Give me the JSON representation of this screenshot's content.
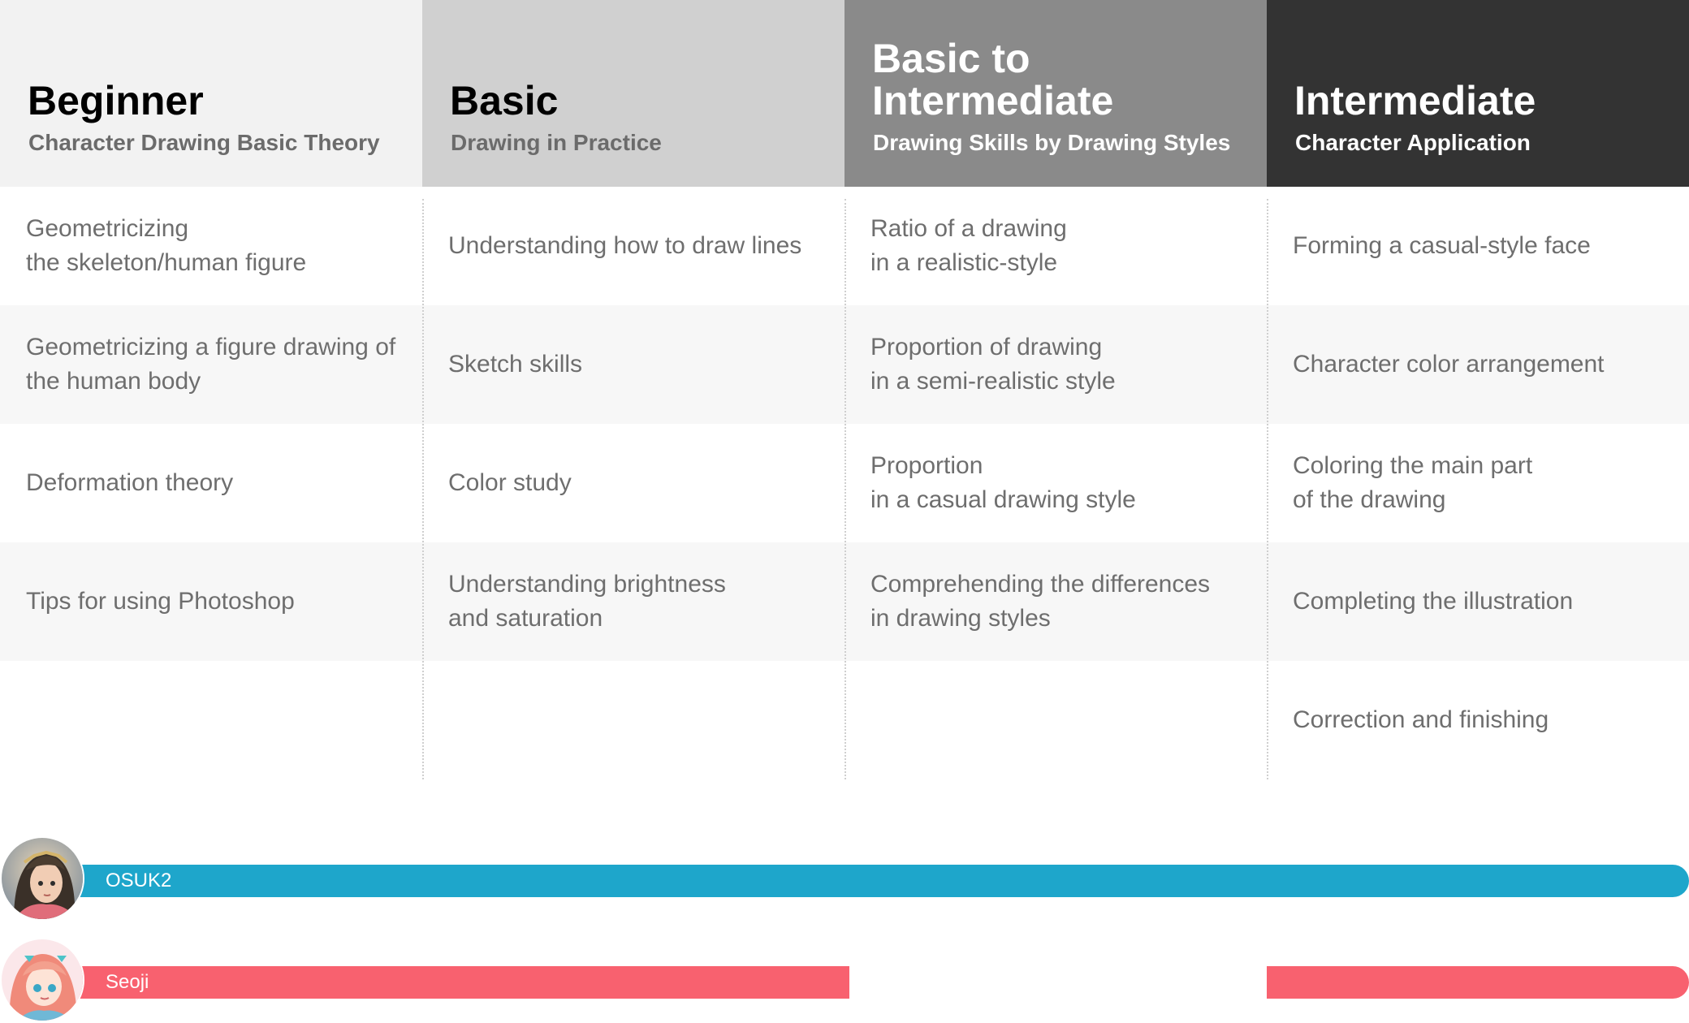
{
  "levels": [
    {
      "title": "Beginner",
      "subtitle": "Character Drawing Basic Theory",
      "items": [
        "Geometricizing\nthe skeleton/human figure",
        "Geometricizing a figure drawing of\nthe human body",
        "Deformation theory",
        "Tips for using Photoshop"
      ]
    },
    {
      "title": "Basic",
      "subtitle": "Drawing in Practice",
      "items": [
        "Understanding how to draw lines",
        "Sketch skills",
        "Color study",
        "Understanding brightness\nand saturation"
      ]
    },
    {
      "title": "Basic to\nIntermediate",
      "subtitle": "Drawing Skills by Drawing Styles",
      "items": [
        "Ratio of a drawing\nin a realistic-style",
        "Proportion of drawing\nin a semi-realistic style",
        "Proportion\nin a casual drawing style",
        "Comprehending the differences\nin drawing styles"
      ]
    },
    {
      "title": "Intermediate",
      "subtitle": "Character Application",
      "items": [
        "Forming a casual-style face",
        "Character color arrangement",
        "Coloring the main part\nof the drawing",
        "Completing the illustration",
        "Correction and finishing"
      ]
    }
  ],
  "instructors": [
    {
      "name": "OSUK2",
      "color": "#1ea6cb",
      "covers": [
        "Beginner",
        "Basic",
        "Basic to Intermediate",
        "Intermediate"
      ]
    },
    {
      "name": "Seoji",
      "color": "#f8616f",
      "covers": [
        "Beginner",
        "Basic",
        "Intermediate"
      ]
    }
  ]
}
